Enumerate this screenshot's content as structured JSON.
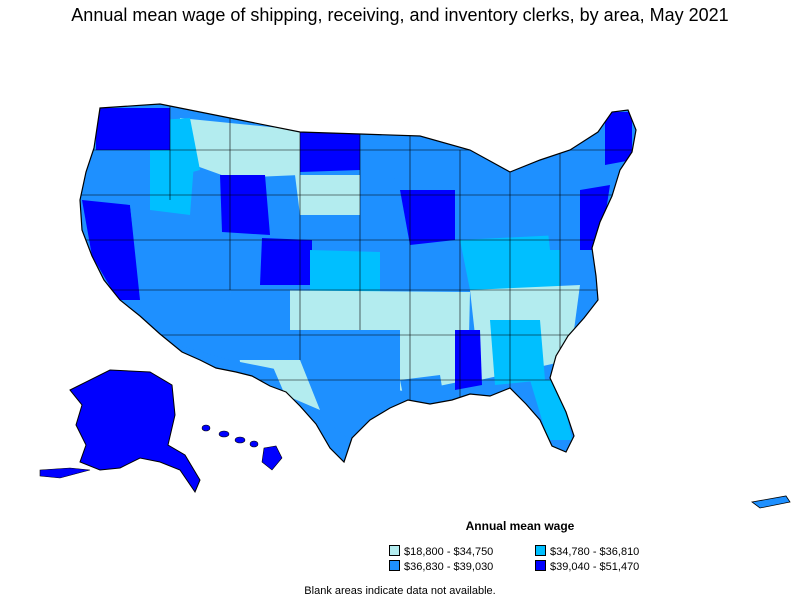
{
  "title": "Annual mean wage of shipping, receiving, and inventory clerks, by area, May 2021",
  "legend": {
    "title": "Annual mean wage",
    "items": [
      {
        "label": "$18,800 - $34,750",
        "color": "#b3ecef"
      },
      {
        "label": "$34,780 - $36,810",
        "color": "#00bfff"
      },
      {
        "label": "$36,830 - $39,030",
        "color": "#1e90ff"
      },
      {
        "label": "$39,040 - $51,470",
        "color": "#0000ff"
      }
    ]
  },
  "footnote": "Blank areas indicate data not available."
}
